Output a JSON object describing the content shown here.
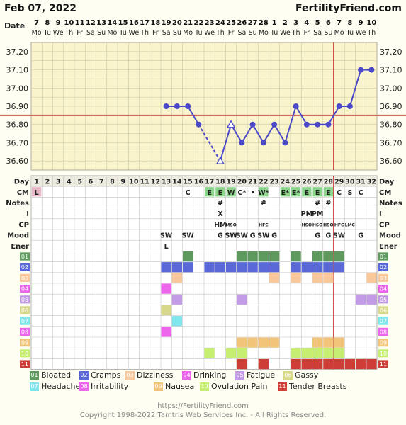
{
  "header": {
    "date": "Feb 07, 2022",
    "brand": "FertilityFriend.com"
  },
  "chart_data": {
    "type": "line",
    "ylim": [
      36.55,
      37.25
    ],
    "yticks": [
      "37.20",
      "37.10",
      "37.00",
      "36.90",
      "36.80",
      "36.70",
      "36.60"
    ],
    "date_numbers": [
      "7",
      "8",
      "9",
      "10",
      "11",
      "12",
      "13",
      "14",
      "15",
      "16",
      "17",
      "18",
      "19",
      "20",
      "21",
      "22",
      "23",
      "24",
      "25",
      "26",
      "27",
      "28",
      "1",
      "2",
      "3",
      "4",
      "5",
      "6",
      "7",
      "8",
      "9",
      "10"
    ],
    "weekdays": [
      "Mo",
      "Tu",
      "We",
      "Th",
      "Fr",
      "Sa",
      "Su",
      "Mo",
      "Tu",
      "We",
      "Th",
      "Fr",
      "Sa",
      "Su",
      "Mo",
      "Tu",
      "We",
      "Th",
      "Fr",
      "Sa",
      "Su",
      "Mo",
      "Tu",
      "We",
      "Th",
      "Fr",
      "Sa",
      "Su",
      "Mo",
      "Tu",
      "We",
      "Th"
    ],
    "temps": [
      null,
      null,
      null,
      null,
      null,
      null,
      null,
      null,
      null,
      null,
      null,
      null,
      36.9,
      36.9,
      36.9,
      36.8,
      null,
      36.6,
      36.8,
      36.7,
      36.8,
      36.7,
      36.8,
      36.7,
      36.9,
      36.8,
      36.8,
      36.8,
      36.9,
      36.9,
      37.1,
      37.1
    ],
    "open_points": [
      18,
      19
    ],
    "dashed_segment": [
      16,
      18
    ],
    "coverline": 36.85,
    "ovulation_day": 28,
    "rows": {
      "Day": [
        "1",
        "2",
        "3",
        "4",
        "5",
        "6",
        "7",
        "8",
        "9",
        "10",
        "11",
        "12",
        "13",
        "14",
        "15",
        "16",
        "17",
        "18",
        "19",
        "20",
        "21",
        "22",
        "23",
        "24",
        "25",
        "26",
        "27",
        "28",
        "29",
        "30",
        "31",
        "32"
      ],
      "CM": [
        "L",
        "",
        "",
        "",
        "",
        "",
        "",
        "",
        "",
        "",
        "",
        "",
        "",
        "",
        "C",
        "",
        "E",
        "E",
        "W",
        "C*",
        "•",
        "W*",
        "",
        "E*",
        "E*",
        "E",
        "E",
        "E",
        "C",
        "S",
        "C",
        ""
      ],
      "Notes": [
        "",
        "",
        "",
        "",
        "",
        "",
        "",
        "",
        "",
        "",
        "",
        "",
        "",
        "",
        "",
        "",
        "",
        "#",
        "",
        "",
        "",
        "#",
        "",
        "",
        "",
        "",
        "#",
        "#",
        "",
        "",
        "",
        ""
      ],
      "I": [
        "",
        "",
        "",
        "",
        "",
        "",
        "",
        "",
        "",
        "",
        "",
        "",
        "",
        "",
        "",
        "",
        "",
        "X",
        "",
        "",
        "",
        "",
        "",
        "",
        "",
        "PM",
        "PM",
        "",
        "",
        "",
        "",
        ""
      ],
      "CP": [
        "",
        "",
        "",
        "",
        "",
        "",
        "",
        "",
        "",
        "",
        "",
        "",
        "",
        "",
        "",
        "",
        "",
        "HM",
        "MSO",
        "",
        "",
        "HFC",
        "",
        "",
        "",
        "HSO",
        "HSO",
        "HSO",
        "HFC",
        "LMC",
        "",
        ""
      ],
      "Mood": [
        "",
        "",
        "",
        "",
        "",
        "",
        "",
        "",
        "",
        "",
        "",
        "",
        "SW",
        "",
        "SW",
        "",
        "",
        "G",
        "SW",
        "SW",
        "G",
        "SW",
        "G",
        "",
        "",
        "",
        "G",
        "G",
        "SW",
        "",
        "G",
        ""
      ],
      "Ener": [
        "",
        "",
        "",
        "",
        "",
        "",
        "",
        "",
        "",
        "",
        "",
        "",
        "L",
        "",
        "",
        "",
        "",
        "",
        "",
        "",
        "",
        "",
        "",
        "",
        "",
        "",
        "",
        "",
        "",
        "",
        "",
        ""
      ]
    },
    "row_labels": [
      "Day",
      "CM",
      "Notes",
      "I",
      "CP",
      "Mood",
      "Ener"
    ],
    "symptoms": [
      {
        "code": "01",
        "name": "Bloated",
        "color": "#5e9a5e",
        "days": [
          15,
          20,
          21,
          22,
          23,
          25,
          27,
          28,
          29
        ]
      },
      {
        "code": "02",
        "name": "Cramps",
        "color": "#5a68d8",
        "days": [
          13,
          14,
          15,
          17,
          18,
          19,
          20,
          21,
          22,
          23,
          25,
          26,
          27,
          28,
          29
        ]
      },
      {
        "code": "03",
        "name": "Dizziness",
        "color": "#f8c89a",
        "days": [
          14,
          23,
          25,
          27,
          28,
          32
        ]
      },
      {
        "code": "04",
        "name": "Drinking",
        "color": "#ec66ec",
        "days": [
          13
        ]
      },
      {
        "code": "05",
        "name": "Fatigue",
        "color": "#c39ae6",
        "days": [
          14,
          20,
          31,
          32
        ]
      },
      {
        "code": "06",
        "name": "Gassy",
        "color": "#d8d88a",
        "days": [
          13
        ]
      },
      {
        "code": "07",
        "name": "Headache",
        "color": "#7ee6ec",
        "days": [
          14
        ]
      },
      {
        "code": "08",
        "name": "Irritability",
        "color": "#ec66ec",
        "days": [
          13
        ]
      },
      {
        "code": "09",
        "name": "Nausea",
        "color": "#f2c479",
        "days": [
          20,
          21,
          22,
          23,
          27,
          28,
          29
        ]
      },
      {
        "code": "10",
        "name": "Ovulation Pain",
        "color": "#c6ee72",
        "days": [
          17,
          19,
          20,
          25,
          26,
          27,
          28,
          29
        ]
      },
      {
        "code": "11",
        "name": "Tender Breasts",
        "color": "#cf3e36",
        "days": [
          20,
          22,
          25,
          26,
          27,
          28,
          29,
          30,
          31,
          32
        ]
      }
    ]
  },
  "footer": {
    "url": "https://FertilityFriend.com",
    "copyright": "Copyright 1998-2022 Tamtris Web Services Inc. - All Rights Reserved."
  }
}
